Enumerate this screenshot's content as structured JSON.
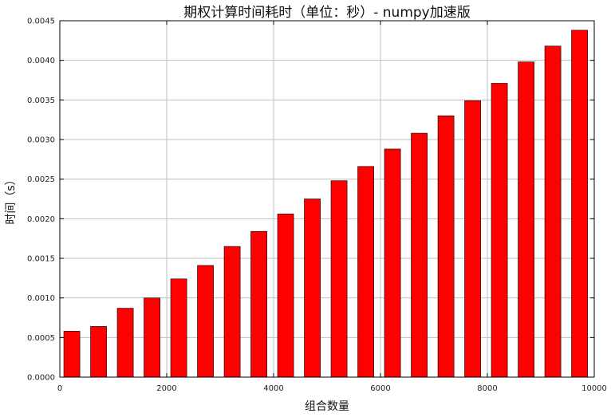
{
  "chart_data": {
    "type": "bar",
    "title": "期权计算时间耗时（单位：秒）- numpy加速版",
    "xlabel": "组合数量",
    "ylabel": "时间（s）",
    "x": [
      300,
      800,
      1300,
      1800,
      2300,
      2800,
      3300,
      3800,
      4300,
      4800,
      5300,
      5800,
      6300,
      6800,
      7300,
      7800,
      8300,
      8800,
      9300,
      9800
    ],
    "values": [
      0.00058,
      0.00064,
      0.00087,
      0.001,
      0.00124,
      0.00141,
      0.00165,
      0.00184,
      0.00206,
      0.00225,
      0.00248,
      0.00266,
      0.00288,
      0.00308,
      0.0033,
      0.00349,
      0.00371,
      0.00398,
      0.00418,
      0.00438
    ],
    "bar_width": 300,
    "xlim": [
      0,
      10000
    ],
    "ylim": [
      0,
      0.0045
    ],
    "xticks": [
      0,
      2000,
      4000,
      6000,
      8000,
      10000
    ],
    "xtick_labels": [
      "0",
      "2000",
      "4000",
      "6000",
      "8000",
      "10000"
    ],
    "yticks": [
      0,
      0.0005,
      0.001,
      0.0015,
      0.002,
      0.0025,
      0.003,
      0.0035,
      0.004,
      0.0045
    ],
    "ytick_labels": [
      "0.0000",
      "0.0005",
      "0.0010",
      "0.0015",
      "0.0020",
      "0.0025",
      "0.0030",
      "0.0035",
      "0.0040",
      "0.0045"
    ],
    "grid": true,
    "bar_color": "#ff0000",
    "edge_color": "#000000",
    "grid_color": "#bfbfbf"
  }
}
